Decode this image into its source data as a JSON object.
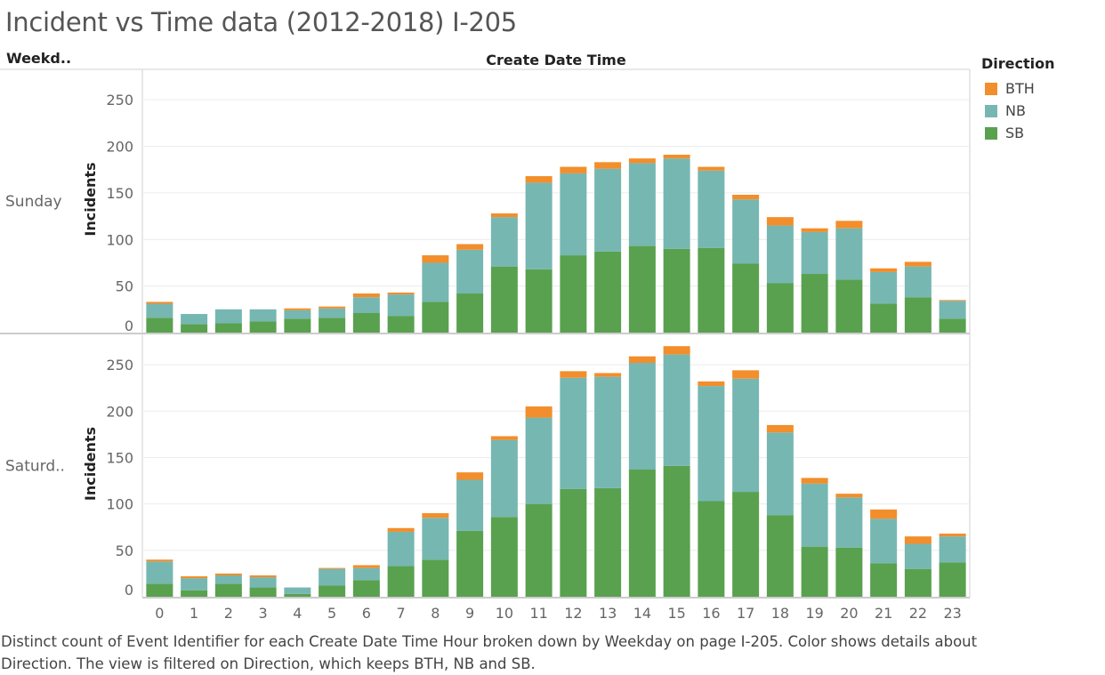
{
  "title": "Incident vs Time data (2012-2018) I-205",
  "row_header": "Weekd..",
  "column_header": "Create Date Time",
  "legend": {
    "title": "Direction",
    "items": [
      {
        "label": "BTH",
        "color": "#f28e2b"
      },
      {
        "label": "NB",
        "color": "#76b7b2"
      },
      {
        "label": "SB",
        "color": "#59a14f"
      }
    ]
  },
  "caption": "Distinct count of Event Identifier for each Create Date Time Hour broken down by Weekday on page I-205.  Color shows details about Direction. The view is filtered on Direction, which keeps BTH, NB and SB.",
  "chart_data": {
    "type": "bar",
    "stacked": true,
    "xlabel": "",
    "ylabel": "Incidents",
    "ylim": [
      0,
      275
    ],
    "yticks": [
      0,
      50,
      100,
      150,
      200,
      250
    ],
    "categories": [
      "0",
      "1",
      "2",
      "3",
      "4",
      "5",
      "6",
      "7",
      "8",
      "9",
      "10",
      "11",
      "12",
      "13",
      "14",
      "15",
      "16",
      "17",
      "18",
      "19",
      "20",
      "21",
      "22",
      "23"
    ],
    "panels": [
      {
        "label": "Sunday",
        "series": [
          {
            "name": "SB",
            "values": [
              16,
              9,
              10,
              12,
              15,
              16,
              21,
              18,
              33,
              42,
              71,
              68,
              83,
              87,
              93,
              90,
              91,
              74,
              53,
              63,
              57,
              31,
              38,
              15
            ]
          },
          {
            "name": "NB",
            "values": [
              15,
              11,
              15,
              13,
              9,
              10,
              17,
              23,
              42,
              47,
              53,
              93,
              88,
              89,
              89,
              97,
              83,
              69,
              62,
              45,
              55,
              34,
              33,
              19
            ]
          },
          {
            "name": "BTH",
            "values": [
              2,
              0,
              0,
              0,
              2,
              2,
              4,
              2,
              8,
              6,
              4,
              7,
              7,
              7,
              5,
              4,
              4,
              5,
              9,
              4,
              8,
              4,
              5,
              1
            ]
          }
        ]
      },
      {
        "label": "Saturd..",
        "series": [
          {
            "name": "SB",
            "values": [
              14,
              7,
              14,
              10,
              3,
              12,
              18,
              33,
              40,
              71,
              86,
              100,
              116,
              117,
              137,
              141,
              103,
              113,
              88,
              54,
              53,
              36,
              30,
              37
            ]
          },
          {
            "name": "NB",
            "values": [
              24,
              13,
              9,
              11,
              7,
              18,
              13,
              37,
              45,
              55,
              83,
              93,
              120,
              120,
              115,
              120,
              124,
              122,
              89,
              68,
              54,
              48,
              27,
              28
            ]
          },
          {
            "name": "BTH",
            "values": [
              2,
              2,
              2,
              2,
              0,
              1,
              3,
              4,
              5,
              8,
              4,
              12,
              7,
              4,
              7,
              9,
              5,
              9,
              8,
              6,
              4,
              10,
              8,
              3
            ]
          }
        ]
      }
    ]
  }
}
